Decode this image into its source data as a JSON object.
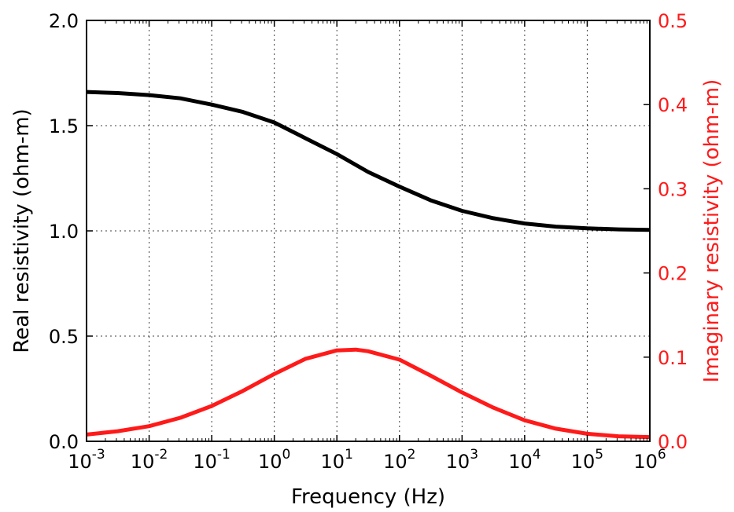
{
  "chart_data": {
    "type": "line",
    "title": "",
    "xlabel": "Frequency (Hz)",
    "ylabel_left": "Real resistivity (ohm-m)",
    "ylabel_right": "Imaginary resistivity (ohm-m)",
    "x_scale": "log",
    "xlim": [
      0.001,
      1000000
    ],
    "ylim_left": [
      0.0,
      2.0
    ],
    "ylim_right": [
      0.0,
      0.5
    ],
    "grid": true,
    "x_ticks": [
      {
        "value": 0.001,
        "base": "10",
        "exp": "-3"
      },
      {
        "value": 0.01,
        "base": "10",
        "exp": "-2"
      },
      {
        "value": 0.1,
        "base": "10",
        "exp": "-1"
      },
      {
        "value": 1,
        "base": "10",
        "exp": "0"
      },
      {
        "value": 10,
        "base": "10",
        "exp": "1"
      },
      {
        "value": 100,
        "base": "10",
        "exp": "2"
      },
      {
        "value": 1000,
        "base": "10",
        "exp": "3"
      },
      {
        "value": 10000,
        "base": "10",
        "exp": "4"
      },
      {
        "value": 100000,
        "base": "10",
        "exp": "5"
      },
      {
        "value": 1000000,
        "base": "10",
        "exp": "6"
      }
    ],
    "y_ticks_left": [
      {
        "value": 0.0,
        "label": "0.0"
      },
      {
        "value": 0.5,
        "label": "0.5"
      },
      {
        "value": 1.0,
        "label": "1.0"
      },
      {
        "value": 1.5,
        "label": "1.5"
      },
      {
        "value": 2.0,
        "label": "2.0"
      }
    ],
    "y_ticks_right": [
      {
        "value": 0.0,
        "label": "0.0"
      },
      {
        "value": 0.1,
        "label": "0.1"
      },
      {
        "value": 0.2,
        "label": "0.2"
      },
      {
        "value": 0.3,
        "label": "0.3"
      },
      {
        "value": 0.4,
        "label": "0.4"
      },
      {
        "value": 0.5,
        "label": "0.5"
      }
    ],
    "series": [
      {
        "axis": "left",
        "color": "#000000",
        "points": [
          [
            0.001,
            1.66
          ],
          [
            0.00316,
            1.655
          ],
          [
            0.01,
            1.645
          ],
          [
            0.0316,
            1.63
          ],
          [
            0.1,
            1.6
          ],
          [
            0.316,
            1.565
          ],
          [
            1,
            1.515
          ],
          [
            3.16,
            1.44
          ],
          [
            10,
            1.365
          ],
          [
            31.6,
            1.28
          ],
          [
            100,
            1.21
          ],
          [
            316,
            1.145
          ],
          [
            1000,
            1.095
          ],
          [
            3160,
            1.06
          ],
          [
            10000,
            1.035
          ],
          [
            31600,
            1.02
          ],
          [
            100000,
            1.012
          ],
          [
            316000,
            1.007
          ],
          [
            1000000,
            1.005
          ]
        ]
      },
      {
        "axis": "right",
        "color": "#ff1a1a",
        "points": [
          [
            0.001,
            0.008
          ],
          [
            0.00316,
            0.012
          ],
          [
            0.01,
            0.018
          ],
          [
            0.0316,
            0.028
          ],
          [
            0.1,
            0.042
          ],
          [
            0.316,
            0.06
          ],
          [
            1,
            0.08
          ],
          [
            3.16,
            0.098
          ],
          [
            10,
            0.108
          ],
          [
            20,
            0.109
          ],
          [
            31.6,
            0.107
          ],
          [
            100,
            0.097
          ],
          [
            316,
            0.078
          ],
          [
            1000,
            0.058
          ],
          [
            3160,
            0.04
          ],
          [
            10000,
            0.025
          ],
          [
            31600,
            0.015
          ],
          [
            100000,
            0.009
          ],
          [
            316000,
            0.006
          ],
          [
            1000000,
            0.005
          ]
        ]
      }
    ]
  }
}
